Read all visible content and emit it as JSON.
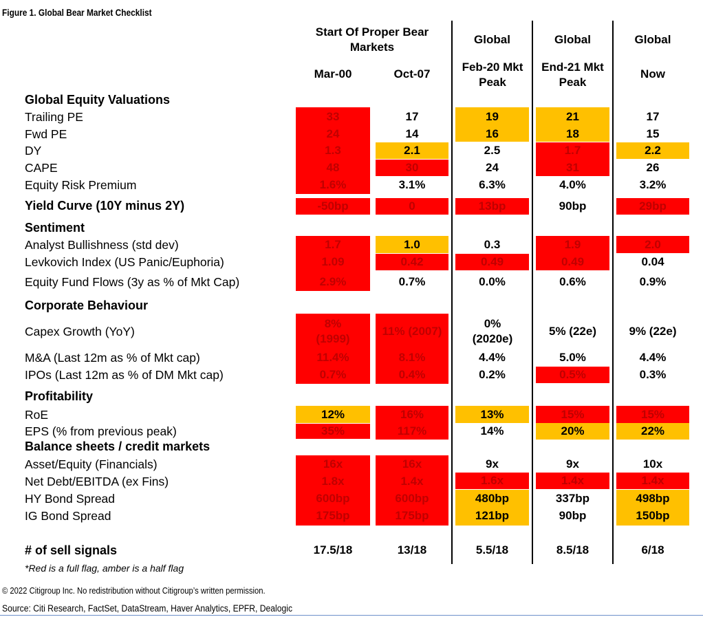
{
  "figure_title": "Figure 1. Global Bear Market Checklist",
  "headers": {
    "group_start": "Start Of Proper Bear Markets",
    "col_mar00": "Mar-00",
    "col_oct07": "Oct-07",
    "col_feb20_top": "Global",
    "col_feb20": "Feb-20 Mkt Peak",
    "col_end21_top": "Global",
    "col_end21": "End-21 Mkt Peak",
    "col_now_top": "Global",
    "col_now": "Now"
  },
  "colors": {
    "red": "#ff0000",
    "amber": "#ffc000",
    "red_text": "#c00000"
  },
  "sections": {
    "valuations": "Global Equity Valuations",
    "yield": "Yield Curve (10Y minus 2Y)",
    "sentiment": "Sentiment",
    "corporate": "Corporate Behaviour",
    "profitability": "Profitability",
    "balance": "Balance sheets / credit markets",
    "sell": "# of sell signals"
  },
  "rows": [
    {
      "label": "Trailing PE",
      "values": [
        "33",
        "17",
        "19",
        "21",
        "17"
      ]
    },
    {
      "label": "Fwd PE",
      "values": [
        "24",
        "14",
        "16",
        "18",
        "15"
      ]
    },
    {
      "label": "DY",
      "values": [
        "1.3",
        "2.1",
        "2.5",
        "1.7",
        "2.2"
      ]
    },
    {
      "label": "CAPE",
      "values": [
        "48",
        "30",
        "24",
        "31",
        "26"
      ]
    },
    {
      "label": "Equity Risk Premium",
      "values": [
        "1.6%",
        "3.1%",
        "6.3%",
        "4.0%",
        "3.2%"
      ]
    },
    {
      "label": "",
      "values": [
        "-50bp",
        "0",
        "13bp",
        "90bp",
        "29bp"
      ]
    },
    {
      "label": "Analyst Bullishness (std dev)",
      "values": [
        "1.7",
        "1.0",
        "0.3",
        "1.9",
        "2.0"
      ]
    },
    {
      "label": "Levkovich Index (US Panic/Euphoria)",
      "values": [
        "1.09",
        "0.42",
        "0.49",
        "0.49",
        "0.04"
      ]
    },
    {
      "label": "Equity Fund Flows (3y as % of Mkt Cap)",
      "values": [
        "2.9%",
        "0.7%",
        "0.0%",
        "0.6%",
        "0.9%"
      ]
    },
    {
      "label": "Capex Growth (YoY)",
      "values": [
        "8% (1999)",
        "11% (2007)",
        "0% (2020e)",
        "5% (22e)",
        "9% (22e)"
      ]
    },
    {
      "label": "M&A (Last 12m as % of Mkt cap)",
      "values": [
        "11.4%",
        "8.1%",
        "4.4%",
        "5.0%",
        "4.4%"
      ]
    },
    {
      "label": "IPOs (Last 12m as % of DM Mkt cap)",
      "values": [
        "0.7%",
        "0.4%",
        "0.2%",
        "0.5%",
        "0.3%"
      ]
    },
    {
      "label": "RoE",
      "values": [
        "12%",
        "16%",
        "13%",
        "15%",
        "15%"
      ]
    },
    {
      "label": "EPS  (% from previous peak)",
      "values": [
        "35%",
        "117%",
        "14%",
        "20%",
        "22%"
      ]
    },
    {
      "label": "Asset/Equity (Financials)",
      "values": [
        "16x",
        "16x",
        "9x",
        "9x",
        "10x"
      ]
    },
    {
      "label": "Net Debt/EBITDA (ex Fins)",
      "values": [
        "1.8x",
        "1.4x",
        "1.6x",
        "1.4x",
        "1.4x"
      ]
    },
    {
      "label": "HY Bond Spread",
      "values": [
        "600bp",
        "600bp",
        "480bp",
        "337bp",
        "498bp"
      ]
    },
    {
      "label": "IG Bond Spread",
      "values": [
        "175bp",
        "175bp",
        "121bp",
        "90bp",
        "150bp"
      ]
    },
    {
      "label": "",
      "values": [
        "17.5/18",
        "13/18",
        "5.5/18",
        "8.5/18",
        "6/18"
      ]
    }
  ],
  "footnote": "*Red is a full flag, amber is a half flag",
  "copyright": "© 2022 Citigroup Inc. No redistribution without Citigroup’s written permission.",
  "source": "Source: Citi Research, FactSet, DataStream, Haver Analytics, EPFR, Dealogic"
}
